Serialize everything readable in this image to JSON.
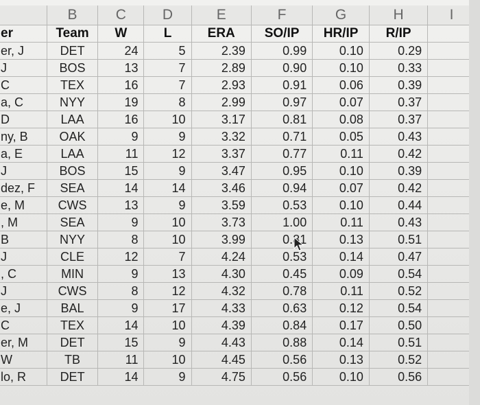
{
  "column_letters": [
    "",
    "B",
    "C",
    "D",
    "E",
    "F",
    "G",
    "H",
    "I"
  ],
  "headers": [
    "er",
    "Team",
    "W",
    "L",
    "ERA",
    "SO/IP",
    "HR/IP",
    "R/IP"
  ],
  "rows": [
    [
      "er, J",
      "DET",
      "24",
      "5",
      "2.39",
      "0.99",
      "0.10",
      "0.29"
    ],
    [
      "J",
      "BOS",
      "13",
      "7",
      "2.89",
      "0.90",
      "0.10",
      "0.33"
    ],
    [
      "C",
      "TEX",
      "16",
      "7",
      "2.93",
      "0.91",
      "0.06",
      "0.39"
    ],
    [
      "a, C",
      "NYY",
      "19",
      "8",
      "2.99",
      "0.97",
      "0.07",
      "0.37"
    ],
    [
      "D",
      "LAA",
      "16",
      "10",
      "3.17",
      "0.81",
      "0.08",
      "0.37"
    ],
    [
      "ny, B",
      "OAK",
      "9",
      "9",
      "3.32",
      "0.71",
      "0.05",
      "0.43"
    ],
    [
      "a, E",
      "LAA",
      "11",
      "12",
      "3.37",
      "0.77",
      "0.11",
      "0.42"
    ],
    [
      "J",
      "BOS",
      "15",
      "9",
      "3.47",
      "0.95",
      "0.10",
      "0.39"
    ],
    [
      "dez, F",
      "SEA",
      "14",
      "14",
      "3.46",
      "0.94",
      "0.07",
      "0.42"
    ],
    [
      "e, M",
      "CWS",
      "13",
      "9",
      "3.59",
      "0.53",
      "0.10",
      "0.44"
    ],
    [
      ", M",
      "SEA",
      "9",
      "10",
      "3.73",
      "1.00",
      "0.11",
      "0.43"
    ],
    [
      "B",
      "NYY",
      "8",
      "10",
      "3.99",
      "0.81",
      "0.13",
      "0.51"
    ],
    [
      "J",
      "CLE",
      "12",
      "7",
      "4.24",
      "0.53",
      "0.14",
      "0.47"
    ],
    [
      ", C",
      "MIN",
      "9",
      "13",
      "4.30",
      "0.45",
      "0.09",
      "0.54"
    ],
    [
      "J",
      "CWS",
      "8",
      "12",
      "4.32",
      "0.78",
      "0.11",
      "0.52"
    ],
    [
      "e, J",
      "BAL",
      "9",
      "17",
      "4.33",
      "0.63",
      "0.12",
      "0.54"
    ],
    [
      "C",
      "TEX",
      "14",
      "10",
      "4.39",
      "0.84",
      "0.17",
      "0.50"
    ],
    [
      "er, M",
      "DET",
      "15",
      "9",
      "4.43",
      "0.88",
      "0.14",
      "0.51"
    ],
    [
      "W",
      "TB",
      "11",
      "10",
      "4.45",
      "0.56",
      "0.13",
      "0.52"
    ],
    [
      "lo, R",
      "DET",
      "14",
      "9",
      "4.75",
      "0.56",
      "0.10",
      "0.56"
    ]
  ],
  "icons": {
    "cursor": "mouse-pointer-icon"
  }
}
